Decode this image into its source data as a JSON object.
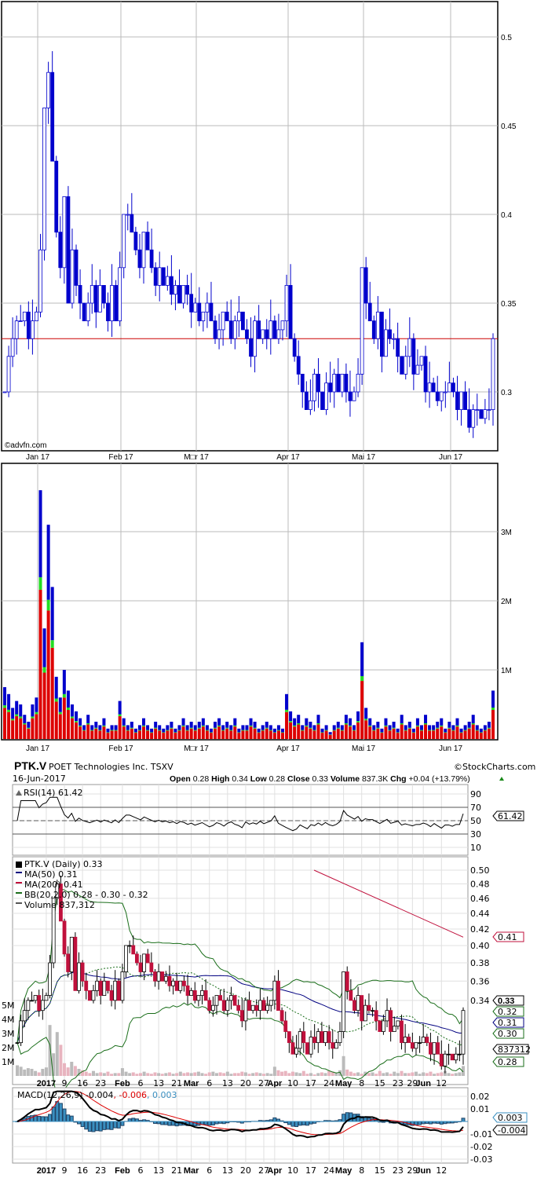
{
  "chart_data": [
    {
      "type": "candlestick",
      "source_label": "©advfn.com",
      "y_ticks": [
        "0.5",
        "0.45",
        "0.4",
        "0.35",
        "0.3"
      ],
      "x_ticks": [
        "Jan 17",
        "Feb 17",
        "M□r 17",
        "Apr 17",
        "Mai 17",
        "Jun 17"
      ],
      "reference_line": 0.33,
      "reference_color": "#cc0000",
      "ylim": [
        0.27,
        0.52
      ],
      "grid": true,
      "colors": {
        "candle": "#0000cc"
      },
      "close": [
        0.3,
        0.32,
        0.33,
        0.34,
        0.34,
        0.345,
        0.33,
        0.34,
        0.345,
        0.38,
        0.46,
        0.48,
        0.43,
        0.39,
        0.37,
        0.41,
        0.35,
        0.38,
        0.36,
        0.35,
        0.34,
        0.35,
        0.36,
        0.345,
        0.36,
        0.35,
        0.34,
        0.36,
        0.34,
        0.37,
        0.4,
        0.4,
        0.39,
        0.38,
        0.37,
        0.39,
        0.38,
        0.37,
        0.36,
        0.37,
        0.36,
        0.365,
        0.355,
        0.36,
        0.35,
        0.36,
        0.355,
        0.345,
        0.35,
        0.34,
        0.345,
        0.35,
        0.34,
        0.33,
        0.335,
        0.345,
        0.34,
        0.33,
        0.34,
        0.345,
        0.335,
        0.33,
        0.32,
        0.34,
        0.33,
        0.335,
        0.33,
        0.34,
        0.33,
        0.335,
        0.34,
        0.36,
        0.33,
        0.32,
        0.31,
        0.3,
        0.29,
        0.295,
        0.31,
        0.3,
        0.29,
        0.305,
        0.3,
        0.31,
        0.3,
        0.31,
        0.3,
        0.295,
        0.3,
        0.31,
        0.37,
        0.35,
        0.34,
        0.33,
        0.345,
        0.32,
        0.335,
        0.33,
        0.33,
        0.32,
        0.31,
        0.32,
        0.33,
        0.31,
        0.315,
        0.32,
        0.3,
        0.305,
        0.3,
        0.295,
        0.3,
        0.3,
        0.305,
        0.3,
        0.29,
        0.3,
        0.29,
        0.28,
        0.29,
        0.29,
        0.285,
        0.29,
        0.29,
        0.33
      ]
    },
    {
      "type": "bar",
      "stacked_colors": [
        "#dd0000",
        "#22dd22",
        "#0000cc"
      ],
      "y_ticks": [
        "1M",
        "2M",
        "3M"
      ],
      "x_ticks": [
        "Jan 17",
        "Feb 17",
        "M□r 17",
        "Apr 17",
        "Mai 17",
        "Jun 17"
      ],
      "ylim": [
        0,
        4
      ],
      "unit": "M",
      "values": [
        0.75,
        0.65,
        0.45,
        0.55,
        0.5,
        0.35,
        0.25,
        0.5,
        0.6,
        3.6,
        1.6,
        3.1,
        2.2,
        0.9,
        0.6,
        1.0,
        0.7,
        0.5,
        0.4,
        0.3,
        0.2,
        0.35,
        0.2,
        0.25,
        0.2,
        0.3,
        0.15,
        0.2,
        0.2,
        0.55,
        0.3,
        0.2,
        0.25,
        0.15,
        0.2,
        0.3,
        0.2,
        0.15,
        0.25,
        0.2,
        0.15,
        0.2,
        0.25,
        0.15,
        0.2,
        0.3,
        0.2,
        0.25,
        0.2,
        0.25,
        0.3,
        0.2,
        0.15,
        0.25,
        0.3,
        0.2,
        0.25,
        0.2,
        0.3,
        0.15,
        0.2,
        0.2,
        0.3,
        0.25,
        0.15,
        0.2,
        0.25,
        0.2,
        0.15,
        0.2,
        0.15,
        0.65,
        0.4,
        0.3,
        0.35,
        0.2,
        0.3,
        0.25,
        0.2,
        0.35,
        0.15,
        0.2,
        0.1,
        0.2,
        0.25,
        0.2,
        0.35,
        0.3,
        0.2,
        0.4,
        1.4,
        0.45,
        0.3,
        0.2,
        0.25,
        0.15,
        0.3,
        0.2,
        0.25,
        0.15,
        0.35,
        0.2,
        0.25,
        0.15,
        0.3,
        0.2,
        0.35,
        0.2,
        0.2,
        0.25,
        0.3,
        0.15,
        0.25,
        0.2,
        0.3,
        0.15,
        0.2,
        0.25,
        0.35,
        0.2,
        0.15,
        0.2,
        0.25,
        0.7
      ]
    },
    {
      "type": "line",
      "title": "RSI(14) 61.42",
      "y_ticks": [
        "90",
        "70",
        "50",
        "30",
        "10"
      ],
      "ylim": [
        0,
        100
      ],
      "last_value_tag": "61.42"
    },
    {
      "type": "candlestick",
      "scale": "log",
      "ylim": [
        0.27,
        0.51
      ],
      "y_ticks": [
        "0.50",
        "0.48",
        "0.46",
        "0.44",
        "0.42",
        "0.40",
        "0.38",
        "0.36",
        "0.34"
      ],
      "volume_ticks": [
        "5M",
        "4M",
        "3M",
        "2M",
        "1M"
      ],
      "legend": [
        {
          "label": "PTK.V (Daily) 0.33",
          "color": "#000000"
        },
        {
          "label": "MA(50) 0.31",
          "color": "#000080"
        },
        {
          "label": "MA(200) 0.41",
          "color": "#c0103c"
        },
        {
          "label": "BB(20,2.0) 0.28 - 0.30 - 0.32",
          "color": "#1a6e1a"
        },
        {
          "label": "Volume 837,312",
          "color": "#555555"
        }
      ],
      "ma200": [
        0.5,
        0.41
      ],
      "value_tags": [
        {
          "text": "0.41",
          "color": "#c0103c"
        },
        {
          "text": "0.33",
          "color": "#000000"
        },
        {
          "text": "0.32",
          "color": "#1a6e1a"
        },
        {
          "text": "0.31",
          "color": "#000080"
        },
        {
          "text": "0.30",
          "color": "#1a6e1a"
        },
        {
          "text": "837312",
          "color": "#000000"
        },
        {
          "text": "0.28",
          "color": "#1a6e1a"
        }
      ]
    },
    {
      "type": "line",
      "title_parts": [
        {
          "text": "MACD(12,26,9) -0.004",
          "color": "#000000"
        },
        {
          "text": ", -0.006",
          "color": "#dd0000"
        },
        {
          "text": ", 0.003",
          "color": "#3a8fc0"
        }
      ],
      "y_ticks": [
        "0.02",
        "0.01",
        "-0.01",
        "-0.02",
        "-0.03"
      ],
      "ylim": [
        -0.035,
        0.025
      ],
      "value_tags": [
        {
          "text": "0.003",
          "color": "#3a8fc0"
        },
        {
          "text": "-0.004",
          "color": "#000000"
        }
      ]
    }
  ],
  "header": {
    "symbol": "PTK.V",
    "company": "POET Technologies Inc.",
    "exchange": "TSXV",
    "copyright": "©StockCharts.com",
    "date": "16-Jun-2017",
    "open_label": "Open",
    "open": "0.28",
    "high_label": "High",
    "high": "0.34",
    "low_label": "Low",
    "low": "0.28",
    "close_label": "Close",
    "close": "0.33",
    "volume_label": "Volume",
    "volume": "837.3K",
    "chg_label": "Chg",
    "chg": "+0.04 (+13.79%)"
  },
  "x_axis_bottom": [
    "2017",
    "9",
    "16",
    "23",
    "Feb",
    "6",
    "13",
    "21",
    "Mar",
    "6",
    "13",
    "20",
    "27",
    "Apr",
    "10",
    "17",
    "24",
    "May",
    "8",
    "15",
    "23",
    "29",
    "Jun",
    "12"
  ]
}
